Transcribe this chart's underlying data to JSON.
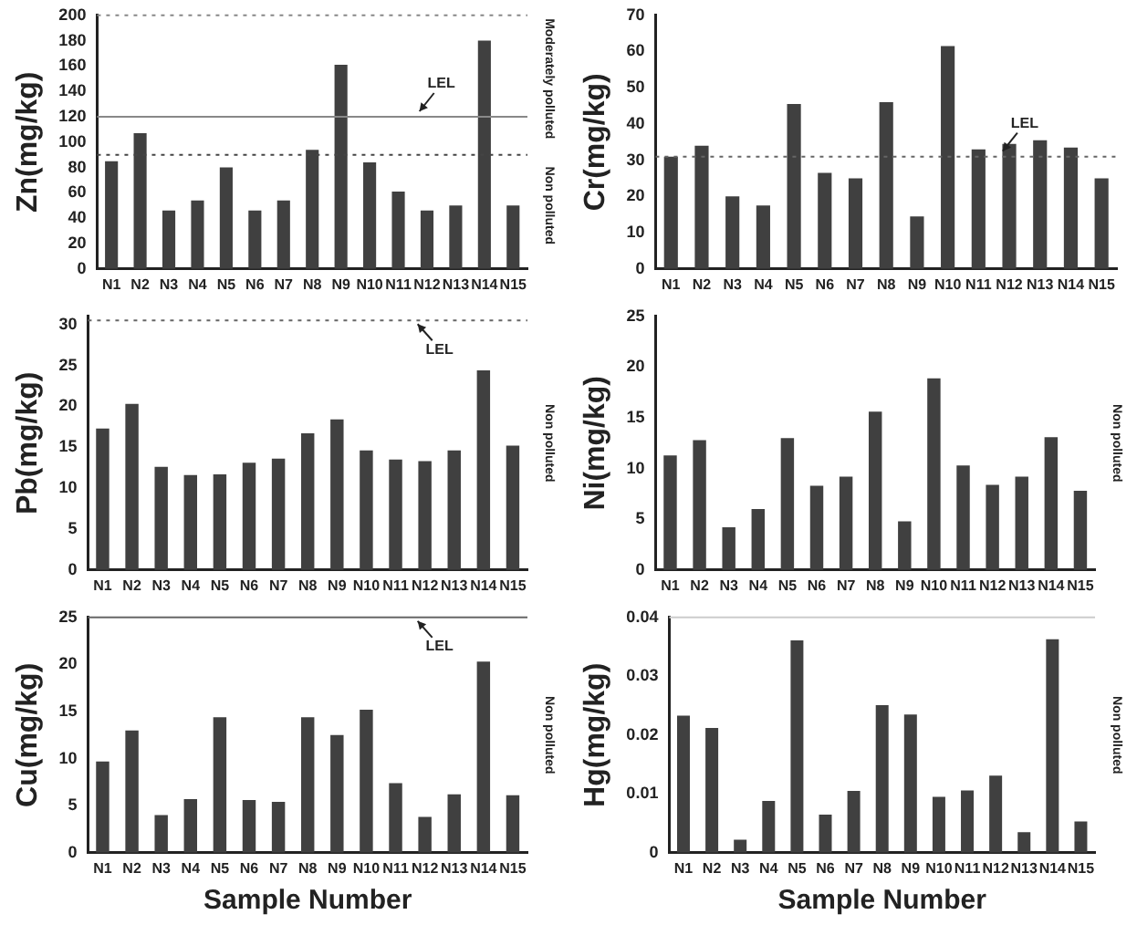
{
  "chart_data": [
    {
      "type": "bar",
      "ylabel": "Zn(mg/kg)",
      "categories": [
        "N1",
        "N2",
        "N3",
        "N4",
        "N5",
        "N6",
        "N7",
        "N8",
        "N9",
        "N10",
        "N11",
        "N12",
        "N13",
        "N14",
        "N15"
      ],
      "values": [
        85,
        107,
        46,
        54,
        80,
        46,
        54,
        94,
        161,
        84,
        61,
        46,
        50,
        180,
        50
      ],
      "color": "#404040",
      "ylim": [
        0,
        200
      ],
      "yticks": [
        0,
        20,
        40,
        60,
        80,
        100,
        120,
        140,
        160,
        180,
        200
      ],
      "grid": false,
      "legend": false,
      "ref_lines": [
        {
          "axis": "y",
          "value": 200,
          "label": null,
          "line_style": "dotted",
          "color": "#888888"
        },
        {
          "axis": "y",
          "value": 120,
          "label": "LEL",
          "line_style": "solid",
          "color": "#888888"
        },
        {
          "axis": "y",
          "value": 90,
          "label": null,
          "line_style": "dotted",
          "color": "#444444"
        }
      ],
      "annotations": [
        "Moderately polluted",
        "Non polluted"
      ]
    },
    {
      "type": "bar",
      "ylabel": "Cr(mg/kg)",
      "categories": [
        "N1",
        "N2",
        "N3",
        "N4",
        "N5",
        "N6",
        "N7",
        "N8",
        "N9",
        "N10",
        "N11",
        "N12",
        "N13",
        "N14",
        "N15"
      ],
      "values": [
        31,
        34,
        20,
        17.5,
        45.5,
        26.5,
        25,
        46,
        14.5,
        61.5,
        33,
        34.5,
        35.5,
        33.5,
        25
      ],
      "color": "#404040",
      "ylim": [
        0,
        70
      ],
      "yticks": [
        0,
        10,
        20,
        30,
        40,
        50,
        60,
        70
      ],
      "grid": false,
      "legend": false,
      "ref_lines": [
        {
          "axis": "y",
          "value": 31,
          "label": "LEL",
          "line_style": "dotted",
          "color": "#666666"
        }
      ]
    },
    {
      "type": "bar",
      "ylabel": "Pb(mg/kg)",
      "categories": [
        "N1",
        "N2",
        "N3",
        "N4",
        "N5",
        "N6",
        "N7",
        "N8",
        "N9",
        "N10",
        "N11",
        "N12",
        "N13",
        "N14",
        "N15"
      ],
      "values": [
        17.3,
        20.3,
        12.6,
        11.6,
        11.7,
        13.1,
        13.6,
        16.7,
        18.4,
        14.6,
        13.5,
        13.3,
        14.6,
        24.4,
        15.2
      ],
      "color": "#404040",
      "ylim": [
        0,
        31
      ],
      "yticks": [
        0,
        5,
        10,
        15,
        20,
        25,
        30
      ],
      "grid": false,
      "legend": false,
      "ref_lines": [
        {
          "axis": "y",
          "value": 30.5,
          "label": "LEL",
          "line_style": "dotted",
          "color": "#666666"
        }
      ],
      "annotations": [
        "Non polluted"
      ]
    },
    {
      "type": "bar",
      "ylabel": "Ni(mg/kg)",
      "categories": [
        "N1",
        "N2",
        "N3",
        "N4",
        "N5",
        "N6",
        "N7",
        "N8",
        "N9",
        "N10",
        "N11",
        "N12",
        "N13",
        "N14",
        "N15"
      ],
      "values": [
        11.3,
        12.8,
        4.2,
        6,
        13,
        8.3,
        9.2,
        15.6,
        4.8,
        18.9,
        10.3,
        8.4,
        9.2,
        13.1,
        7.8
      ],
      "color": "#404040",
      "ylim": [
        0,
        25
      ],
      "yticks": [
        0,
        5,
        10,
        15,
        20,
        25
      ],
      "grid": false,
      "legend": false,
      "annotations": [
        "Non polluted"
      ]
    },
    {
      "type": "bar",
      "ylabel": "Cu(mg/kg)",
      "xlabel": "Sample Number",
      "categories": [
        "N1",
        "N2",
        "N3",
        "N4",
        "N5",
        "N6",
        "N7",
        "N8",
        "N9",
        "N10",
        "N11",
        "N12",
        "N13",
        "N14",
        "N15"
      ],
      "values": [
        9.7,
        13,
        4,
        5.7,
        14.4,
        5.6,
        5.4,
        14.4,
        12.5,
        15.2,
        7.4,
        3.8,
        6.2,
        20.3,
        6.1
      ],
      "color": "#404040",
      "ylim": [
        0,
        25
      ],
      "yticks": [
        0,
        5,
        10,
        15,
        20,
        25
      ],
      "grid": false,
      "legend": false,
      "ref_lines": [
        {
          "axis": "y",
          "value": 25,
          "label": "LEL",
          "line_style": "solid",
          "color": "#666666"
        }
      ],
      "annotations": [
        "Non polluted"
      ]
    },
    {
      "type": "bar",
      "ylabel": "Hg(mg/kg)",
      "xlabel": "Sample Number",
      "categories": [
        "N1",
        "N2",
        "N3",
        "N4",
        "N5",
        "N6",
        "N7",
        "N8",
        "N9",
        "N10",
        "N11",
        "N12",
        "N13",
        "N14",
        "N15"
      ],
      "values": [
        0.0233,
        0.0212,
        0.0022,
        0.0088,
        0.0361,
        0.0065,
        0.0105,
        0.0251,
        0.0235,
        0.0095,
        0.0106,
        0.0131,
        0.0035,
        0.0363,
        0.0053
      ],
      "color": "#404040",
      "ylim": [
        0,
        0.04
      ],
      "yticks": [
        0,
        0.01,
        0.02,
        0.03,
        0.04
      ],
      "grid": false,
      "legend": false,
      "ref_lines": [
        {
          "axis": "y",
          "value": 0.04,
          "label": null,
          "line_style": "solid",
          "color": "#cccccc"
        }
      ],
      "annotations": [
        "Non polluted"
      ]
    }
  ]
}
